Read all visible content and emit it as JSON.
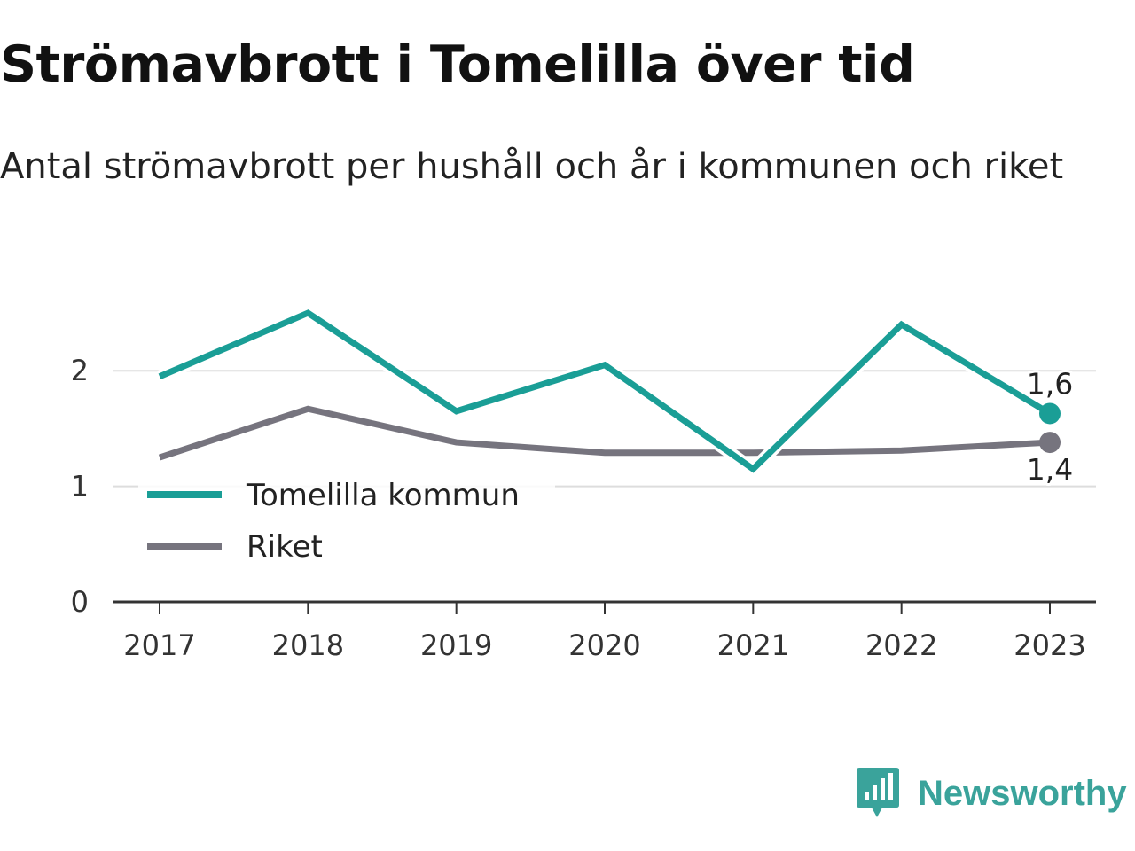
{
  "header": {
    "title": "Strömavbrott i Tomelilla över tid",
    "subtitle": "Antal strömavbrott per hushåll och år i kommunen och riket"
  },
  "chart_data": {
    "type": "line",
    "title": "Strömavbrott i Tomelilla över tid",
    "subtitle": "Antal strömavbrott per hushåll och år i kommunen och riket",
    "xlabel": "",
    "ylabel": "",
    "categories": [
      "2017",
      "2018",
      "2019",
      "2020",
      "2021",
      "2022",
      "2023"
    ],
    "ylim": [
      0,
      2.6
    ],
    "yticks": [
      0,
      1,
      2
    ],
    "grid": true,
    "legend_position": "bottom-left",
    "series": [
      {
        "name": "Tomelilla kommun",
        "color": "#1a9e96",
        "values": [
          1.95,
          2.5,
          1.65,
          2.05,
          1.15,
          2.4,
          1.63
        ],
        "end_label": "1,6"
      },
      {
        "name": "Riket",
        "color": "#76747e",
        "values": [
          1.25,
          1.67,
          1.38,
          1.29,
          1.29,
          1.31,
          1.38
        ],
        "end_label": "1,4"
      }
    ]
  },
  "brand": {
    "name": "Newsworthy",
    "color": "#3aa39b",
    "icon": "newsworthy-logo-icon"
  }
}
